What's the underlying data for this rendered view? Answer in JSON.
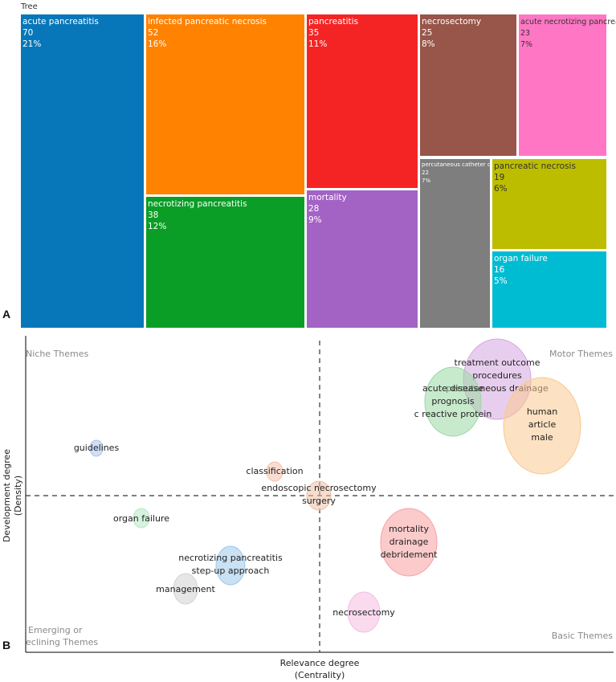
{
  "chart_data": [
    {
      "type": "treemap",
      "title": "Tree",
      "panel": "A",
      "items": [
        {
          "label": "acute pancreatitis",
          "count": "70",
          "pct": "21%",
          "color": "#0877b9"
        },
        {
          "label": "infected pancreatic necrosis",
          "count": "52",
          "pct": "16%",
          "color": "#ff8200"
        },
        {
          "label": "necrotizing pancreatitis",
          "count": "38",
          "pct": "12%",
          "color": "#0a9e26"
        },
        {
          "label": "pancreatitis",
          "count": "35",
          "pct": "11%",
          "color": "#f52424"
        },
        {
          "label": "mortality",
          "count": "28",
          "pct": "9%",
          "color": "#a363c4"
        },
        {
          "label": "necrosectomy",
          "count": "25",
          "pct": "8%",
          "color": "#985549"
        },
        {
          "label": "acute necrotizing pancreatitis",
          "count": "23",
          "pct": "7%",
          "color": "#ff77c4"
        },
        {
          "label": "percutaneous catheter drainage",
          "count": "22",
          "pct": "7%",
          "color": "#7e7e7e"
        },
        {
          "label": "pancreatic necrosis",
          "count": "19",
          "pct": "6%",
          "color": "#bdbd00"
        },
        {
          "label": "organ failure",
          "count": "16",
          "pct": "5%",
          "color": "#00bcd2"
        }
      ]
    },
    {
      "type": "scatter",
      "panel": "B",
      "subtype": "thematic map",
      "xlabel": [
        "Relevance degree",
        "(Centrality)"
      ],
      "ylabel": [
        "Development degree",
        "(Density)"
      ],
      "quadrants": {
        "top_left": "Niche Themes",
        "top_right": "Motor Themes",
        "bottom_left": [
          "Emerging or",
          "eclining Themes"
        ],
        "bottom_right": "Basic Themes"
      },
      "bubbles": [
        {
          "label": [
            "treatment outcome",
            "procedures",
            "percutaneous drainage"
          ],
          "color": "#d6a6e0"
        },
        {
          "label": [
            "acute disease",
            "prognosis",
            "c reactive protein"
          ],
          "color": "#9ad8a3"
        },
        {
          "label": [
            "human",
            "article",
            "male"
          ],
          "color": "#f9c98f"
        },
        {
          "label": [
            "guidelines"
          ],
          "color": "#a9c2ee"
        },
        {
          "label": [
            "classification"
          ],
          "color": "#f5c0a9"
        },
        {
          "label": [
            "endoscopic necrosectomy",
            "surgery"
          ],
          "color": "#efc1a6"
        },
        {
          "label": [
            "organ failure"
          ],
          "color": "#b5e8c4"
        },
        {
          "label": [
            "mortality",
            "drainage",
            "debridement"
          ],
          "color": "#f7a1a1"
        },
        {
          "label": [
            "necrotizing pancreatitis",
            "step-up approach"
          ],
          "color": "#9ec8ea"
        },
        {
          "label": [
            "management"
          ],
          "color": "#d2d2d2"
        },
        {
          "label": [
            "necrosectomy"
          ],
          "color": "#f5bce1"
        }
      ]
    }
  ]
}
